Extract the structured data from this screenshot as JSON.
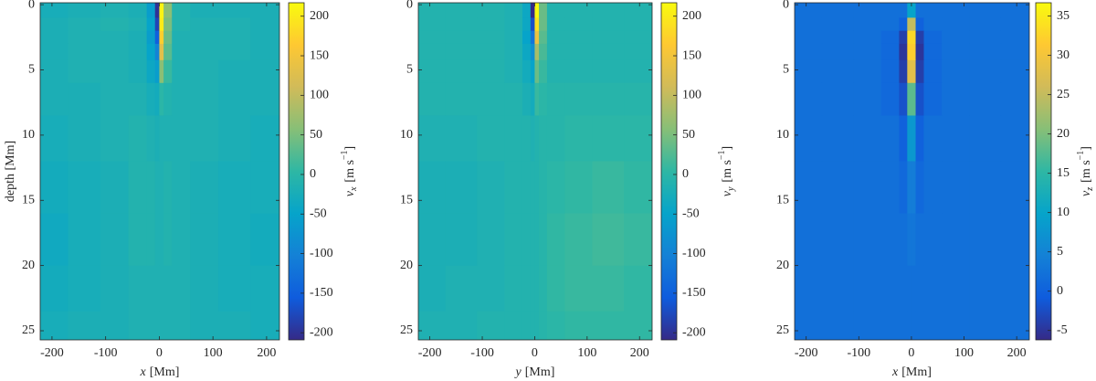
{
  "chart_data": [
    {
      "type": "heatmap",
      "colormap": "parula",
      "xlabel": {
        "symbol": "x",
        "unit": "[Mm]"
      },
      "ylabel": "depth [Mm]",
      "clabel": {
        "symbol": "v",
        "sub": "x",
        "unit": "[m s",
        "sup": "−1",
        "close": "]"
      },
      "x": [
        -200,
        -140,
        -80,
        -35,
        -12,
        -4,
        4,
        12,
        35,
        80,
        140,
        200
      ],
      "y": [
        0.5,
        1.5,
        2.5,
        3.5,
        5,
        7,
        10,
        14,
        18,
        22,
        25
      ],
      "xlim": [
        -222,
        224
      ],
      "ylim": [
        -0.15,
        25.7
      ],
      "yreverse": true,
      "xticks": [
        -200,
        -100,
        0,
        100,
        200
      ],
      "yticks": [
        0,
        5,
        10,
        15,
        20,
        25
      ],
      "clim": [
        -209,
        217
      ],
      "cticks": [
        -200,
        -150,
        -100,
        -50,
        0,
        50,
        100,
        150,
        200
      ],
      "z": [
        [
          -25,
          -20,
          -15,
          -20,
          -60,
          -200,
          210,
          60,
          -10,
          -20,
          -20,
          -20
        ],
        [
          -20,
          -15,
          -10,
          -15,
          -50,
          -180,
          200,
          50,
          -10,
          -15,
          -15,
          -20
        ],
        [
          -20,
          -15,
          -15,
          -20,
          -60,
          -150,
          170,
          40,
          -15,
          -15,
          -15,
          -20
        ],
        [
          -20,
          -15,
          -15,
          -20,
          -50,
          -100,
          130,
          30,
          -15,
          -15,
          -15,
          -20
        ],
        [
          -20,
          -15,
          -15,
          -20,
          -40,
          -60,
          60,
          10,
          -15,
          -15,
          -20,
          -20
        ],
        [
          -20,
          -20,
          -15,
          -15,
          -25,
          -30,
          0,
          -10,
          -15,
          -15,
          -20,
          -20
        ],
        [
          -25,
          -20,
          -15,
          -10,
          -15,
          -20,
          -15,
          -15,
          -15,
          -15,
          -20,
          -25
        ],
        [
          -30,
          -25,
          -20,
          -10,
          -10,
          -15,
          -15,
          -10,
          -15,
          -20,
          -25,
          -25
        ],
        [
          -35,
          -25,
          -20,
          -10,
          -10,
          -15,
          -15,
          -10,
          -15,
          -20,
          -25,
          -30
        ],
        [
          -30,
          -25,
          -20,
          -15,
          -15,
          -15,
          -15,
          -15,
          -15,
          -20,
          -25,
          -25
        ],
        [
          -25,
          -20,
          -20,
          -15,
          -15,
          -15,
          -15,
          -15,
          -15,
          -20,
          -20,
          -25
        ]
      ]
    },
    {
      "type": "heatmap",
      "colormap": "parula",
      "xlabel": {
        "symbol": "y",
        "unit": "[Mm]"
      },
      "clabel": {
        "symbol": "v",
        "sub": "y",
        "unit": "[m s",
        "sup": "−1",
        "close": "]"
      },
      "x": [
        -200,
        -140,
        -80,
        -35,
        -12,
        -4,
        4,
        12,
        35,
        80,
        140,
        200
      ],
      "y": [
        0.5,
        1.5,
        2.5,
        3.5,
        5,
        7,
        10,
        14,
        18,
        22,
        25
      ],
      "xlim": [
        -222,
        224
      ],
      "ylim": [
        -0.15,
        25.7
      ],
      "yreverse": true,
      "xticks": [
        -200,
        -100,
        0,
        100,
        200
      ],
      "yticks": [
        0,
        5,
        10,
        15,
        20,
        25
      ],
      "clim": [
        -209,
        217
      ],
      "cticks": [
        -200,
        -150,
        -100,
        -50,
        0,
        50,
        100,
        150,
        200
      ],
      "z": [
        [
          -10,
          -10,
          -10,
          -15,
          -40,
          -210,
          215,
          40,
          -10,
          -10,
          -10,
          -10
        ],
        [
          -10,
          -10,
          -10,
          -15,
          -40,
          -170,
          190,
          40,
          -10,
          -10,
          -10,
          -10
        ],
        [
          -10,
          -10,
          -10,
          -15,
          -50,
          -120,
          140,
          30,
          -10,
          -10,
          -10,
          -10
        ],
        [
          -10,
          -10,
          -10,
          -15,
          -40,
          -80,
          80,
          20,
          -10,
          -10,
          -10,
          -10
        ],
        [
          -10,
          -10,
          -10,
          -15,
          -30,
          -50,
          40,
          10,
          -10,
          -10,
          -10,
          -10
        ],
        [
          -10,
          -10,
          -10,
          -10,
          -20,
          -30,
          10,
          0,
          -5,
          -5,
          -5,
          -5
        ],
        [
          -15,
          -15,
          -10,
          -10,
          -10,
          -15,
          -10,
          -5,
          -5,
          0,
          0,
          0
        ],
        [
          -20,
          -20,
          -15,
          -10,
          -10,
          -10,
          -10,
          -5,
          0,
          5,
          10,
          5
        ],
        [
          -20,
          -20,
          -15,
          -10,
          -10,
          -10,
          -10,
          -5,
          5,
          10,
          15,
          10
        ],
        [
          -20,
          -15,
          -15,
          -10,
          -10,
          -10,
          -10,
          -5,
          5,
          10,
          10,
          5
        ],
        [
          -15,
          -15,
          -10,
          -10,
          -10,
          -10,
          -10,
          -5,
          0,
          5,
          5,
          5
        ]
      ]
    },
    {
      "type": "heatmap",
      "colormap": "parula",
      "xlabel": {
        "symbol": "x",
        "unit": "[Mm]"
      },
      "clabel": {
        "symbol": "v",
        "sub": "z",
        "unit": "[m s",
        "sup": "−1",
        "close": "]"
      },
      "x": [
        -200,
        -140,
        -80,
        -35,
        -12,
        -4,
        4,
        12,
        35,
        80,
        140,
        200
      ],
      "y": [
        0.5,
        1.5,
        2.5,
        3.5,
        5,
        7,
        10,
        14,
        18,
        22,
        25
      ],
      "xlim": [
        -222,
        224
      ],
      "ylim": [
        -0.15,
        25.7
      ],
      "yreverse": true,
      "xticks": [
        -200,
        -100,
        0,
        100,
        200
      ],
      "yticks": [
        0,
        5,
        10,
        15,
        20,
        25
      ],
      "clim": [
        -6.2,
        36.7
      ],
      "cticks": [
        -5,
        0,
        5,
        10,
        15,
        20,
        25,
        30,
        35
      ],
      "z": [
        [
          2,
          2,
          2,
          2,
          2,
          10,
          10,
          2,
          2,
          2,
          2,
          2
        ],
        [
          2,
          2,
          2,
          2,
          0,
          25,
          25,
          0,
          2,
          2,
          2,
          2
        ],
        [
          2,
          2,
          2,
          1,
          -4,
          33,
          33,
          -4,
          1,
          2,
          2,
          2
        ],
        [
          2,
          2,
          2,
          1,
          -5,
          32,
          32,
          -5,
          1,
          2,
          2,
          2
        ],
        [
          2,
          2,
          2,
          1,
          -4,
          28,
          28,
          -4,
          1,
          2,
          2,
          2
        ],
        [
          2,
          2,
          2,
          1,
          -2,
          18,
          18,
          -2,
          1,
          2,
          2,
          2
        ],
        [
          2,
          2,
          2,
          2,
          0,
          8,
          8,
          0,
          2,
          2,
          2,
          2
        ],
        [
          2,
          2,
          2,
          2,
          1,
          4,
          4,
          1,
          2,
          2,
          2,
          2
        ],
        [
          2,
          2,
          2,
          2,
          2,
          3,
          3,
          2,
          2,
          2,
          2,
          2
        ],
        [
          2,
          2,
          2,
          2,
          2,
          2,
          2,
          2,
          2,
          2,
          2,
          2
        ],
        [
          2,
          2,
          2,
          2,
          2,
          2,
          2,
          2,
          2,
          2,
          2,
          2
        ]
      ]
    }
  ]
}
